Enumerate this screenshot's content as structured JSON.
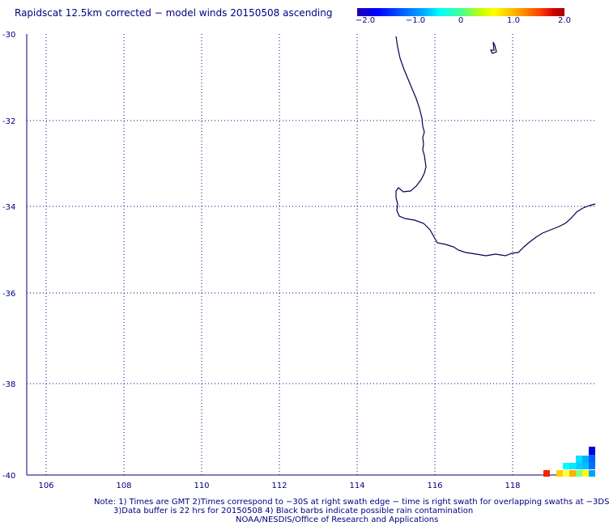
{
  "title": "Rapidscat 12.5km corrected − model winds 20150508 ascending",
  "colorbar": {
    "ticks": [
      "−2.0",
      "−1.0",
      "0",
      "1.0",
      "2.0"
    ],
    "colors": [
      "#1e00b4",
      "#0000ff",
      "#00b4ff",
      "#00ffff",
      "#40ff90",
      "#ffff00",
      "#ffa000",
      "#ff4000",
      "#a00000"
    ]
  },
  "map": {
    "lat_labels": [
      "-30",
      "-32",
      "-34",
      "-36",
      "-38",
      "-40"
    ],
    "lon_labels": [
      "106",
      "108",
      "110",
      "112",
      "114",
      "116",
      "118"
    ],
    "coastline_color": "#000050",
    "grid_color": "#000080"
  },
  "notes": {
    "line1": "Note: 1) Times are GMT 2)Times correspond to −30S at right swath edge − time is right swath for overlapping swaths at −3DS",
    "line2": "3)Data buffer is 22 hrs for 20150508 4) Black barbs indicate possible rain contamination",
    "line3": "NOAA/NESDIS/Office of Research and Applications"
  }
}
